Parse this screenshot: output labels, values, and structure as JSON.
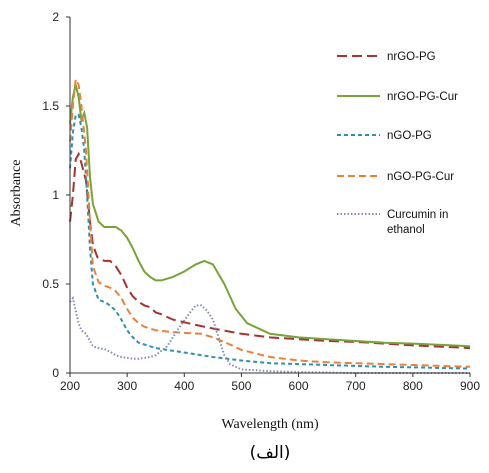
{
  "chart_data": {
    "type": "line",
    "xlabel": "Wavelength (nm)",
    "ylabel": "Absorbance",
    "xlim": [
      200,
      900
    ],
    "ylim": [
      0,
      2
    ],
    "x_ticks": [
      "200",
      "300",
      "400",
      "500",
      "600",
      "700",
      "800",
      "900"
    ],
    "y_ticks": [
      "0",
      "0.5",
      "1",
      "1.5",
      "2"
    ],
    "grid": false,
    "legend_position": "right",
    "caption": "(الف)",
    "series": [
      {
        "name": "nrGO-PG",
        "color": "#a3342f",
        "dash": "long-dash",
        "points": [
          [
            200,
            0.85
          ],
          [
            205,
            1.0
          ],
          [
            210,
            1.2
          ],
          [
            215,
            1.23
          ],
          [
            220,
            1.18
          ],
          [
            228,
            1.08
          ],
          [
            235,
            0.85
          ],
          [
            240,
            0.72
          ],
          [
            248,
            0.65
          ],
          [
            260,
            0.63
          ],
          [
            270,
            0.63
          ],
          [
            280,
            0.6
          ],
          [
            290,
            0.55
          ],
          [
            300,
            0.48
          ],
          [
            310,
            0.43
          ],
          [
            320,
            0.4
          ],
          [
            330,
            0.38
          ],
          [
            340,
            0.37
          ],
          [
            350,
            0.34
          ],
          [
            360,
            0.33
          ],
          [
            380,
            0.3
          ],
          [
            400,
            0.285
          ],
          [
            420,
            0.27
          ],
          [
            450,
            0.25
          ],
          [
            500,
            0.22
          ],
          [
            550,
            0.2
          ],
          [
            600,
            0.19
          ],
          [
            650,
            0.18
          ],
          [
            700,
            0.175
          ],
          [
            750,
            0.165
          ],
          [
            800,
            0.155
          ],
          [
            850,
            0.148
          ],
          [
            900,
            0.14
          ]
        ]
      },
      {
        "name": "nrGO-PG-Cur",
        "color": "#77a33a",
        "dash": "solid",
        "points": [
          [
            200,
            1.4
          ],
          [
            205,
            1.55
          ],
          [
            210,
            1.62
          ],
          [
            215,
            1.55
          ],
          [
            220,
            1.42
          ],
          [
            225,
            1.46
          ],
          [
            230,
            1.38
          ],
          [
            235,
            1.1
          ],
          [
            240,
            0.95
          ],
          [
            250,
            0.85
          ],
          [
            260,
            0.82
          ],
          [
            270,
            0.82
          ],
          [
            280,
            0.82
          ],
          [
            290,
            0.8
          ],
          [
            300,
            0.76
          ],
          [
            310,
            0.7
          ],
          [
            320,
            0.63
          ],
          [
            330,
            0.57
          ],
          [
            340,
            0.54
          ],
          [
            350,
            0.52
          ],
          [
            360,
            0.52
          ],
          [
            380,
            0.54
          ],
          [
            400,
            0.57
          ],
          [
            420,
            0.61
          ],
          [
            435,
            0.63
          ],
          [
            450,
            0.61
          ],
          [
            470,
            0.5
          ],
          [
            490,
            0.36
          ],
          [
            510,
            0.28
          ],
          [
            550,
            0.22
          ],
          [
            600,
            0.2
          ],
          [
            650,
            0.19
          ],
          [
            700,
            0.18
          ],
          [
            750,
            0.17
          ],
          [
            800,
            0.165
          ],
          [
            850,
            0.158
          ],
          [
            900,
            0.15
          ]
        ]
      },
      {
        "name": "nGO-PG",
        "color": "#2f90ad",
        "dash": "short-dash",
        "points": [
          [
            200,
            1.15
          ],
          [
            205,
            1.35
          ],
          [
            210,
            1.45
          ],
          [
            215,
            1.45
          ],
          [
            220,
            1.38
          ],
          [
            225,
            1.25
          ],
          [
            230,
            1.0
          ],
          [
            235,
            0.7
          ],
          [
            240,
            0.5
          ],
          [
            250,
            0.41
          ],
          [
            260,
            0.4
          ],
          [
            270,
            0.38
          ],
          [
            280,
            0.35
          ],
          [
            290,
            0.3
          ],
          [
            300,
            0.24
          ],
          [
            310,
            0.2
          ],
          [
            320,
            0.17
          ],
          [
            330,
            0.16
          ],
          [
            340,
            0.15
          ],
          [
            350,
            0.14
          ],
          [
            370,
            0.13
          ],
          [
            400,
            0.115
          ],
          [
            450,
            0.09
          ],
          [
            500,
            0.07
          ],
          [
            550,
            0.055
          ],
          [
            600,
            0.05
          ],
          [
            650,
            0.045
          ],
          [
            700,
            0.04
          ],
          [
            750,
            0.035
          ],
          [
            800,
            0.032
          ],
          [
            850,
            0.028
          ],
          [
            900,
            0.025
          ]
        ]
      },
      {
        "name": "nGO-PG-Cur",
        "color": "#e8823a",
        "dash": "dash",
        "points": [
          [
            200,
            1.3
          ],
          [
            205,
            1.5
          ],
          [
            210,
            1.65
          ],
          [
            215,
            1.62
          ],
          [
            220,
            1.5
          ],
          [
            228,
            1.25
          ],
          [
            235,
            0.85
          ],
          [
            240,
            0.6
          ],
          [
            250,
            0.51
          ],
          [
            260,
            0.49
          ],
          [
            270,
            0.48
          ],
          [
            280,
            0.46
          ],
          [
            290,
            0.42
          ],
          [
            300,
            0.36
          ],
          [
            310,
            0.31
          ],
          [
            320,
            0.28
          ],
          [
            330,
            0.26
          ],
          [
            350,
            0.24
          ],
          [
            380,
            0.23
          ],
          [
            400,
            0.225
          ],
          [
            430,
            0.22
          ],
          [
            450,
            0.2
          ],
          [
            480,
            0.16
          ],
          [
            500,
            0.13
          ],
          [
            550,
            0.09
          ],
          [
            600,
            0.07
          ],
          [
            650,
            0.06
          ],
          [
            700,
            0.055
          ],
          [
            750,
            0.05
          ],
          [
            800,
            0.045
          ],
          [
            850,
            0.04
          ],
          [
            900,
            0.035
          ]
        ]
      },
      {
        "name": "Curcumin in ethanol",
        "color": "#8088c0",
        "dash": "dotted",
        "points": [
          [
            200,
            0.4
          ],
          [
            205,
            0.42
          ],
          [
            210,
            0.35
          ],
          [
            215,
            0.28
          ],
          [
            220,
            0.24
          ],
          [
            228,
            0.22
          ],
          [
            235,
            0.18
          ],
          [
            240,
            0.15
          ],
          [
            250,
            0.14
          ],
          [
            260,
            0.135
          ],
          [
            270,
            0.12
          ],
          [
            280,
            0.1
          ],
          [
            290,
            0.09
          ],
          [
            300,
            0.085
          ],
          [
            310,
            0.08
          ],
          [
            320,
            0.08
          ],
          [
            330,
            0.085
          ],
          [
            340,
            0.09
          ],
          [
            350,
            0.1
          ],
          [
            370,
            0.15
          ],
          [
            390,
            0.25
          ],
          [
            410,
            0.34
          ],
          [
            420,
            0.38
          ],
          [
            430,
            0.38
          ],
          [
            440,
            0.35
          ],
          [
            450,
            0.3
          ],
          [
            460,
            0.2
          ],
          [
            470,
            0.1
          ],
          [
            480,
            0.05
          ],
          [
            500,
            0.02
          ],
          [
            550,
            0.01
          ],
          [
            600,
            0.005
          ],
          [
            700,
            0.0
          ],
          [
            800,
            0.0
          ],
          [
            900,
            0.0
          ]
        ]
      }
    ]
  }
}
